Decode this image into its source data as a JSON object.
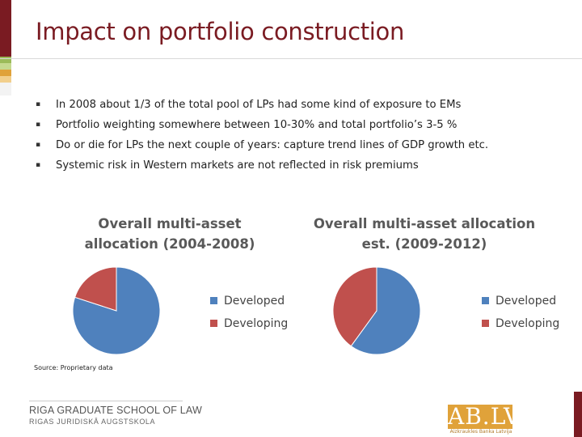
{
  "slide": {
    "title": "Impact on portfolio construction",
    "bullet_glyph": "▪",
    "bullets": [
      "In 2008 about 1/3 of the total pool of LPs had some kind of exposure to EMs",
      "Portfolio weighting somewhere between 10-30% and total portfolio’s 3-5 %",
      "Do or die for LPs the next couple of years: capture trend lines of GDP growth etc.",
      "Systemic risk in Western markets are not reflected in risk premiums"
    ],
    "source": "Source: Proprietary data"
  },
  "colors": {
    "title": "#7a1b22",
    "developed": "#4f81bd",
    "developing": "#c0504d",
    "accent_dark_red": "#7a1b22",
    "accent_green": "#9bbb59",
    "accent_orange": "#e0a23a"
  },
  "chart_data": [
    {
      "type": "pie",
      "title": [
        "Overall multi-asset",
        "allocation (2004-2008)"
      ],
      "categories": [
        "Developed",
        "Developing"
      ],
      "values": [
        80,
        20
      ],
      "legend": "right"
    },
    {
      "type": "pie",
      "title": [
        "Overall multi-asset allocation",
        "est. (2009-2012)"
      ],
      "categories": [
        "Developed",
        "Developing"
      ],
      "values": [
        60,
        40
      ],
      "legend": "right"
    }
  ],
  "footer": {
    "school": "RIGA GRADUATE SCHOOL OF LAW",
    "school_lv": "RIGAS JURIDISKĀ AUGSTSKOLA",
    "logo_text": "AB.LV",
    "logo_sub": "Aizkraukles Banka Latvija"
  }
}
